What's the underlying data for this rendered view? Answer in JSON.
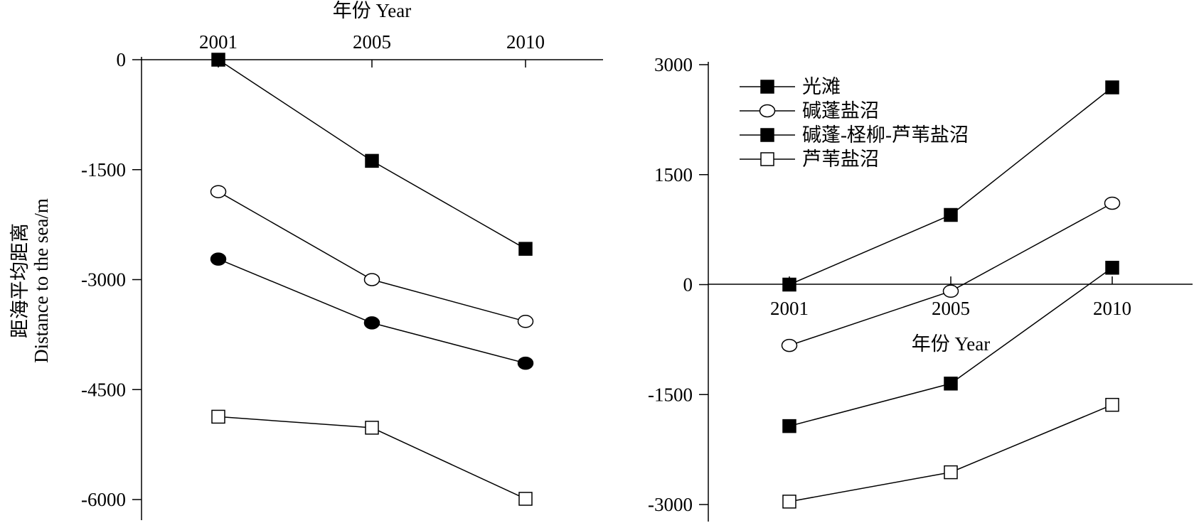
{
  "chart_data": [
    {
      "type": "line",
      "xlabel": "年份 Year",
      "ylabel_cn": "距海平均距离",
      "ylabel_en": "Distance to the sea/m",
      "categories": [
        "2001",
        "2005",
        "2010"
      ],
      "ylim": [
        -6000,
        0
      ],
      "yticks": [
        0,
        -1500,
        -3000,
        -4500,
        -6000
      ],
      "ytick_labels": [
        "0",
        "-1500",
        "-3000",
        "-4500",
        "-6000"
      ],
      "x_axis_position": "top",
      "series": [
        {
          "values": [
            0,
            -1380,
            -2580
          ],
          "marker": "square-filled"
        },
        {
          "values": [
            -1800,
            -3000,
            -3570
          ],
          "marker": "circle-open"
        },
        {
          "values": [
            -2720,
            -3590,
            -4140
          ],
          "marker": "circle-filled"
        },
        {
          "values": [
            -4870,
            -5020,
            -5990
          ],
          "marker": "square-open"
        }
      ]
    },
    {
      "type": "line",
      "xlabel": "年份 Year",
      "categories": [
        "2001",
        "2005",
        "2010"
      ],
      "ylim": [
        -3000,
        3000
      ],
      "yticks": [
        3000,
        1500,
        0,
        -1500,
        -3000
      ],
      "ytick_labels": [
        "3000",
        "1500",
        "0",
        "-1500",
        "-3000"
      ],
      "x_axis_position": "zero",
      "legend_position": "top-left",
      "series": [
        {
          "name": "光滩",
          "values": [
            0,
            950,
            2690
          ],
          "marker": "square-filled"
        },
        {
          "name": "碱蓬盐沼",
          "values": [
            -830,
            -90,
            1110
          ],
          "marker": "circle-open"
        },
        {
          "name": "碱蓬-柽柳-芦苇盐沼",
          "values": [
            -1930,
            -1350,
            230
          ],
          "marker": "square-filled"
        },
        {
          "name": "芦苇盐沼",
          "values": [
            -2960,
            -2560,
            -1640
          ],
          "marker": "square-open"
        }
      ]
    }
  ]
}
